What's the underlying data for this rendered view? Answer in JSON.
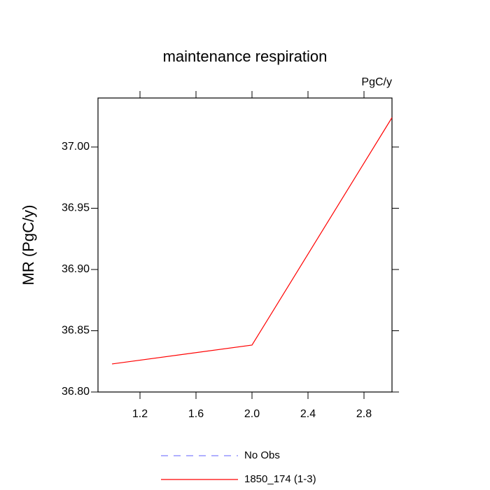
{
  "chart_data": {
    "type": "line",
    "title": "maintenance respiration",
    "units": "PgC/y",
    "y_label": "MR  (PgC/y)",
    "x": [
      1,
      2,
      3
    ],
    "series": [
      {
        "name": "No Obs",
        "color": "#8080ff",
        "dashed": true,
        "values": [
          null,
          null,
          null
        ]
      },
      {
        "name": "1850_174 (1-3)",
        "color": "#ff0000",
        "dashed": false,
        "values": [
          36.8229,
          36.8383,
          37.024
        ]
      }
    ],
    "xlim": [
      0.9,
      3.0
    ],
    "xticks": [
      1.2,
      1.6,
      {
        "value": 2,
        "label": "2.0"
      },
      2.4,
      2.8
    ],
    "ylim": [
      36.8,
      37.04
    ],
    "yticks": [
      {
        "value": 36.8,
        "label": "36.80"
      },
      36.85,
      {
        "value": 36.9,
        "label": "36.90"
      },
      36.95,
      {
        "value": 37,
        "label": "37.00"
      }
    ],
    "grid": false
  }
}
